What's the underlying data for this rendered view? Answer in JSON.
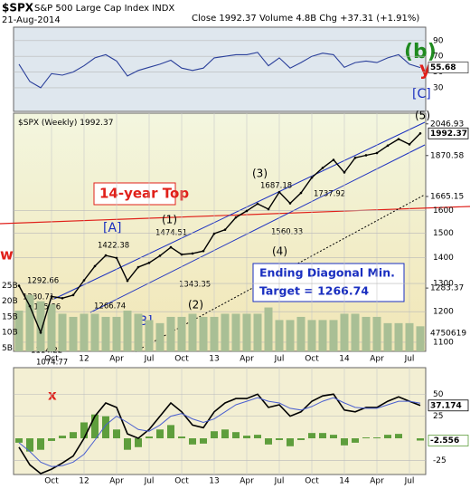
{
  "header": {
    "symbol": "$SPX",
    "name": "S&P 500 Large Cap Index INDX",
    "date": "21-Aug-2014",
    "quote": "Close 1992.37  Volume 4.8B  Chg +37.31 (+1.91%)"
  },
  "annotations": [
    "(b)",
    "y",
    "[C]",
    "(5)",
    "(3)",
    "14-year Top",
    "[A]",
    "(1)",
    "[B]",
    "(2)",
    "(4)",
    "Ending Diagonal Min.",
    "Target = 1266.74",
    "w",
    "x"
  ],
  "price_labels": [
    1687.18,
    1474.51,
    1422.38,
    1737.92,
    1560.33,
    1292.66,
    1230.71,
    1195.86,
    1343.35,
    1266.74,
    1114.22,
    1074.77
  ],
  "chart_data": [
    {
      "type": "line",
      "ylim": [
        0,
        107
      ],
      "yticks": [
        90,
        70,
        50,
        30
      ],
      "color": "#2a3f9a",
      "grid": true,
      "values": [
        60,
        38,
        30,
        48,
        46,
        50,
        58,
        68,
        72,
        64,
        45,
        52,
        56,
        60,
        65,
        55,
        52,
        55,
        68,
        70,
        72,
        72,
        75,
        58,
        68,
        55,
        62,
        70,
        74,
        72,
        56,
        62,
        64,
        62,
        68,
        72,
        60,
        55.68
      ]
    },
    {
      "type": "line",
      "title": "$SPX (Weekly)",
      "log_scale": true,
      "grid": true,
      "color": "#000000",
      "ylim": [
        1072,
        2110
      ],
      "yticks": [
        1100,
        1200,
        1300,
        1400,
        1500,
        1600
      ],
      "categories": [
        null,
        null,
        null,
        "Oct",
        null,
        null,
        "12",
        null,
        null,
        "Apr",
        null,
        null,
        "Jul",
        null,
        null,
        "Oct",
        null,
        null,
        "13",
        null,
        null,
        "Apr",
        null,
        null,
        "Jul",
        null,
        null,
        "Oct",
        null,
        null,
        "14",
        null,
        null,
        "Apr",
        null,
        null,
        "Jul",
        null
      ],
      "values": [
        1292,
        1219,
        1131,
        1253,
        1247,
        1258,
        1312,
        1366,
        1408,
        1398,
        1310,
        1362,
        1379,
        1407,
        1441,
        1412,
        1416,
        1426,
        1498,
        1515,
        1569,
        1598,
        1631,
        1606,
        1686,
        1633,
        1682,
        1757,
        1806,
        1848,
        1783,
        1859,
        1872,
        1884,
        1924,
        1960,
        1931,
        1992.37
      ],
      "markers": [
        2046.93,
        1870.58,
        1665.15,
        1283.37
      ],
      "volume_marker": 4750619,
      "volume": {
        "color": "#a9bf95",
        "ylim": [
          4,
          80
        ],
        "yticks": [
          {
            "value": 25,
            "label": "25B"
          },
          {
            "value": 20,
            "label": "20B"
          },
          {
            "value": 15,
            "label": "15B"
          },
          {
            "value": 10,
            "label": "10B"
          },
          {
            "value": 5,
            "label": "5B"
          }
        ],
        "values": [
          17,
          22,
          20,
          19,
          16,
          15,
          16,
          16,
          15,
          15,
          17,
          16,
          14,
          13,
          15,
          15,
          16,
          15,
          15,
          16,
          16,
          16,
          16,
          18,
          14,
          14,
          15,
          14,
          14,
          14,
          16,
          16,
          15,
          15,
          13,
          13,
          13,
          12
        ]
      }
    },
    {
      "type": "macd",
      "ylim": [
        -41,
        80
      ],
      "yticks": [
        50,
        25,
        -25
      ],
      "grid": true,
      "categories": [
        null,
        null,
        null,
        "Oct",
        null,
        null,
        "12",
        null,
        null,
        "Apr",
        null,
        null,
        "Jul",
        null,
        null,
        "Oct",
        null,
        null,
        "13",
        null,
        null,
        "Apr",
        null,
        null,
        "Jul",
        null,
        null,
        "Oct",
        null,
        null,
        "14",
        null,
        null,
        "Apr",
        null,
        null,
        "Jul",
        null
      ],
      "series": [
        {
          "type": "line",
          "color": "#000000",
          "values": [
            -10,
            -30,
            -40,
            -35,
            -28,
            -20,
            0,
            25,
            40,
            35,
            5,
            0,
            10,
            25,
            40,
            30,
            15,
            12,
            30,
            40,
            45,
            45,
            50,
            35,
            38,
            25,
            30,
            42,
            48,
            50,
            32,
            30,
            35,
            35,
            42,
            47,
            42,
            37.174
          ]
        },
        {
          "type": "line",
          "color": "#4a5fd0",
          "values": [
            -5,
            -15,
            -27,
            -32,
            -31,
            -27,
            -18,
            -2,
            15,
            25,
            18,
            10,
            8,
            15,
            25,
            28,
            22,
            18,
            22,
            30,
            38,
            42,
            46,
            42,
            40,
            34,
            32,
            36,
            42,
            46,
            40,
            35,
            34,
            34,
            38,
            42,
            42,
            39.73
          ]
        },
        {
          "type": "bar",
          "color": "#5e9e3c",
          "values": [
            -5,
            -15,
            -13,
            -3,
            3,
            7,
            18,
            27,
            25,
            10,
            -13,
            -10,
            2,
            10,
            15,
            2,
            -7,
            -6,
            8,
            10,
            7,
            3,
            4,
            -7,
            -2,
            -9,
            -2,
            6,
            6,
            4,
            -8,
            -5,
            1,
            1,
            4,
            5,
            0,
            -2.556
          ]
        }
      ]
    }
  ]
}
